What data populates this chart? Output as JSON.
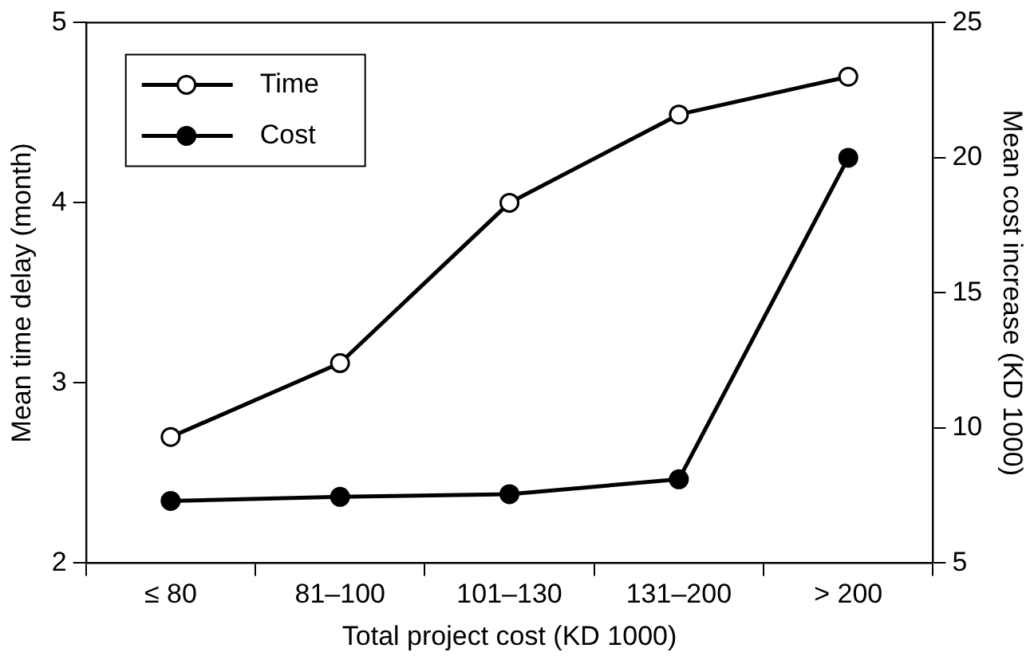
{
  "chart_data": {
    "type": "line",
    "xlabel": "Total project cost (KD 1000)",
    "ylabel": "Mean time delay (month)",
    "y2label": "Mean cost increase (KD 1000)",
    "categories": [
      "≤ 80",
      "81–100",
      "101–130",
      "131–200",
      "> 200"
    ],
    "series": [
      {
        "name": "Time",
        "color": "#000000",
        "values": [
          2.7,
          3.11,
          4.0,
          4.49,
          4.7
        ]
      },
      {
        "name": "Cost",
        "color": "#000000",
        "axis": "y2",
        "values": [
          7.3,
          7.45,
          7.55,
          8.1,
          20.0
        ]
      }
    ],
    "ylim": [
      2,
      5
    ],
    "yticks": [
      2,
      3,
      4,
      5
    ],
    "y2lim": [
      5,
      25
    ],
    "y2ticks": [
      5,
      10,
      15,
      20,
      25
    ],
    "grid": false,
    "legend": "top left",
    "marker": "circle",
    "line_style": "solid"
  }
}
